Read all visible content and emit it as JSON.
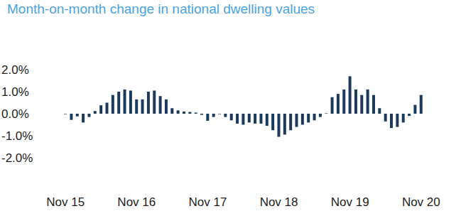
{
  "chart_data": {
    "type": "bar",
    "title": "Month-on-month change in national dwelling values",
    "categories": [
      "Nov 15",
      null,
      null,
      null,
      null,
      null,
      null,
      null,
      null,
      null,
      null,
      null,
      "Nov 16",
      null,
      null,
      null,
      null,
      null,
      null,
      null,
      null,
      null,
      null,
      null,
      "Nov 17",
      null,
      null,
      null,
      null,
      null,
      null,
      null,
      null,
      null,
      null,
      null,
      "Nov 18",
      null,
      null,
      null,
      null,
      null,
      null,
      null,
      null,
      null,
      null,
      null,
      "Nov 19",
      null,
      null,
      null,
      null,
      null,
      null,
      null,
      null,
      null,
      null,
      null,
      "Nov 20"
    ],
    "values": [
      -0.02,
      -0.28,
      -0.12,
      -0.4,
      -0.15,
      0.12,
      0.38,
      0.5,
      0.85,
      1.0,
      1.1,
      1.05,
      0.65,
      0.65,
      1.0,
      1.05,
      0.8,
      0.65,
      0.25,
      0.15,
      0.1,
      0.08,
      0.05,
      -0.05,
      -0.32,
      -0.15,
      -0.02,
      -0.15,
      -0.3,
      -0.45,
      -0.5,
      -0.4,
      -0.45,
      -0.45,
      -0.55,
      -0.75,
      -1.05,
      -0.95,
      -0.75,
      -0.6,
      -0.5,
      -0.4,
      -0.3,
      -0.15,
      0.02,
      0.75,
      0.9,
      1.1,
      1.7,
      1.1,
      0.85,
      1.1,
      0.85,
      0.25,
      -0.35,
      -0.65,
      -0.6,
      -0.4,
      -0.1,
      0.4,
      0.85
    ],
    "color": "#1b3a5c",
    "ylim": [
      -2,
      2
    ],
    "yticks": [
      {
        "value": 2,
        "label": "2.0%"
      },
      {
        "value": 1,
        "label": "1.0%"
      },
      {
        "value": 0,
        "label": "0.0%"
      },
      {
        "value": -1,
        "label": "-1.0%"
      },
      {
        "value": -2,
        "label": "-2.0%"
      }
    ],
    "grid": false
  }
}
